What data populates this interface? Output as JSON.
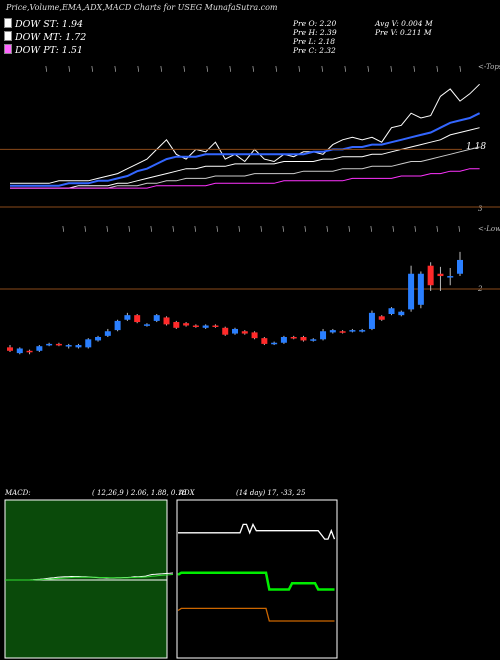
{
  "header": {
    "title": "Price,Volume,EMA,ADX,MACD Charts for USEG MunafaSutra.com"
  },
  "legend": [
    {
      "label": "DOW ST: 1.94",
      "color": "#ffffff"
    },
    {
      "label": "DOW MT: 1.72",
      "color": "#ffffff"
    },
    {
      "label": "DOW PT: 1.51",
      "color": "#ff66ff"
    }
  ],
  "stats": {
    "open": "Pre  O: 2.20",
    "high": "Pre  H: 2.39",
    "low": "Pre  L: 2.18",
    "close": "Pre  C: 2.32",
    "avg_vol": "Avg V: 0.004  M",
    "pre_vol": "Pre  V: 0.211 M"
  },
  "axes": {
    "top_right_label": "<-Tops",
    "lower_right_label": "<-Lows",
    "ema_level": "1.18",
    "volume_tick": "3",
    "price_tick": "2"
  },
  "macd": {
    "title": "MACD:",
    "params": "( 12,26,9 ) 2.06, 1.88, 0.18"
  },
  "adx": {
    "title": "ADX",
    "params": "(14  day) 17, -33, 25"
  },
  "chart_data": [
    {
      "type": "candlestick",
      "name": "price",
      "candles": [
        {
          "o": 1.56,
          "c": 1.53,
          "h": 1.58,
          "l": 1.52
        },
        {
          "o": 1.51,
          "c": 1.55,
          "h": 1.56,
          "l": 1.5
        },
        {
          "o": 1.53,
          "c": 1.52,
          "h": 1.54,
          "l": 1.5
        },
        {
          "o": 1.53,
          "c": 1.57,
          "h": 1.58,
          "l": 1.52
        },
        {
          "o": 1.58,
          "c": 1.59,
          "h": 1.6,
          "l": 1.57
        },
        {
          "o": 1.59,
          "c": 1.58,
          "h": 1.6,
          "l": 1.57
        },
        {
          "o": 1.57,
          "c": 1.58,
          "h": 1.59,
          "l": 1.55
        },
        {
          "o": 1.56,
          "c": 1.58,
          "h": 1.59,
          "l": 1.55
        },
        {
          "o": 1.56,
          "c": 1.63,
          "h": 1.64,
          "l": 1.55
        },
        {
          "o": 1.62,
          "c": 1.65,
          "h": 1.66,
          "l": 1.61
        },
        {
          "o": 1.66,
          "c": 1.7,
          "h": 1.72,
          "l": 1.65
        },
        {
          "o": 1.71,
          "c": 1.79,
          "h": 1.8,
          "l": 1.7
        },
        {
          "o": 1.8,
          "c": 1.84,
          "h": 1.86,
          "l": 1.79
        },
        {
          "o": 1.84,
          "c": 1.78,
          "h": 1.85,
          "l": 1.77
        },
        {
          "o": 1.75,
          "c": 1.76,
          "h": 1.77,
          "l": 1.74
        },
        {
          "o": 1.79,
          "c": 1.84,
          "h": 1.85,
          "l": 1.78
        },
        {
          "o": 1.82,
          "c": 1.76,
          "h": 1.83,
          "l": 1.75
        },
        {
          "o": 1.78,
          "c": 1.73,
          "h": 1.79,
          "l": 1.72
        },
        {
          "o": 1.77,
          "c": 1.75,
          "h": 1.78,
          "l": 1.74
        },
        {
          "o": 1.75,
          "c": 1.74,
          "h": 1.76,
          "l": 1.73
        },
        {
          "o": 1.73,
          "c": 1.75,
          "h": 1.76,
          "l": 1.72
        },
        {
          "o": 1.75,
          "c": 1.74,
          "h": 1.76,
          "l": 1.73
        },
        {
          "o": 1.73,
          "c": 1.67,
          "h": 1.74,
          "l": 1.66
        },
        {
          "o": 1.68,
          "c": 1.72,
          "h": 1.73,
          "l": 1.67
        },
        {
          "o": 1.7,
          "c": 1.68,
          "h": 1.71,
          "l": 1.67
        },
        {
          "o": 1.69,
          "c": 1.64,
          "h": 1.7,
          "l": 1.63
        },
        {
          "o": 1.64,
          "c": 1.59,
          "h": 1.65,
          "l": 1.58
        },
        {
          "o": 1.6,
          "c": 1.6,
          "h": 1.61,
          "l": 1.58
        },
        {
          "o": 1.6,
          "c": 1.65,
          "h": 1.66,
          "l": 1.59
        },
        {
          "o": 1.65,
          "c": 1.64,
          "h": 1.66,
          "l": 1.63
        },
        {
          "o": 1.65,
          "c": 1.62,
          "h": 1.66,
          "l": 1.61
        },
        {
          "o": 1.62,
          "c": 1.63,
          "h": 1.64,
          "l": 1.61
        },
        {
          "o": 1.63,
          "c": 1.7,
          "h": 1.72,
          "l": 1.62
        },
        {
          "o": 1.69,
          "c": 1.71,
          "h": 1.72,
          "l": 1.68
        },
        {
          "o": 1.7,
          "c": 1.69,
          "h": 1.71,
          "l": 1.68
        },
        {
          "o": 1.7,
          "c": 1.71,
          "h": 1.72,
          "l": 1.69
        },
        {
          "o": 1.7,
          "c": 1.71,
          "h": 1.72,
          "l": 1.69
        },
        {
          "o": 1.72,
          "c": 1.86,
          "h": 1.88,
          "l": 1.71
        },
        {
          "o": 1.83,
          "c": 1.8,
          "h": 1.84,
          "l": 1.79
        },
        {
          "o": 1.85,
          "c": 1.9,
          "h": 1.91,
          "l": 1.84
        },
        {
          "o": 1.84,
          "c": 1.87,
          "h": 1.88,
          "l": 1.83
        },
        {
          "o": 1.89,
          "c": 2.2,
          "h": 2.27,
          "l": 1.87
        },
        {
          "o": 1.93,
          "c": 2.2,
          "h": 2.22,
          "l": 1.9
        },
        {
          "o": 2.27,
          "c": 2.1,
          "h": 2.3,
          "l": 2.05
        },
        {
          "o": 2.2,
          "c": 2.18,
          "h": 2.26,
          "l": 2.05
        },
        {
          "o": 2.18,
          "c": 2.18,
          "h": 2.25,
          "l": 2.1
        },
        {
          "o": 2.2,
          "c": 2.32,
          "h": 2.39,
          "l": 2.18
        }
      ]
    },
    {
      "type": "line",
      "name": "price-ema-panel",
      "series": [
        {
          "values": [
            1.04,
            1.04,
            1.04,
            1.04,
            1.04,
            1.05,
            1.05,
            1.05,
            1.05,
            1.06,
            1.07,
            1.08,
            1.1,
            1.12,
            1.14,
            1.18,
            1.22,
            1.16,
            1.14,
            1.18,
            1.17,
            1.21,
            1.14,
            1.16,
            1.13,
            1.18,
            1.14,
            1.13,
            1.16,
            1.15,
            1.17,
            1.17,
            1.16,
            1.2,
            1.22,
            1.23,
            1.22,
            1.23,
            1.21,
            1.27,
            1.28,
            1.33,
            1.31,
            1.32,
            1.4,
            1.43,
            1.38,
            1.41,
            1.45
          ]
        },
        {
          "values": [
            1.03,
            1.03,
            1.03,
            1.03,
            1.03,
            1.03,
            1.04,
            1.04,
            1.04,
            1.05,
            1.05,
            1.06,
            1.07,
            1.09,
            1.1,
            1.12,
            1.14,
            1.15,
            1.15,
            1.15,
            1.16,
            1.16,
            1.16,
            1.16,
            1.16,
            1.16,
            1.16,
            1.16,
            1.16,
            1.16,
            1.16,
            1.17,
            1.17,
            1.18,
            1.18,
            1.19,
            1.19,
            1.2,
            1.2,
            1.21,
            1.22,
            1.23,
            1.24,
            1.25,
            1.27,
            1.29,
            1.3,
            1.31,
            1.33
          ]
        },
        {
          "values": [
            1.02,
            1.02,
            1.02,
            1.02,
            1.02,
            1.02,
            1.02,
            1.03,
            1.03,
            1.03,
            1.03,
            1.04,
            1.04,
            1.05,
            1.06,
            1.07,
            1.08,
            1.09,
            1.1,
            1.1,
            1.11,
            1.11,
            1.11,
            1.12,
            1.12,
            1.12,
            1.12,
            1.12,
            1.13,
            1.13,
            1.13,
            1.13,
            1.14,
            1.14,
            1.15,
            1.15,
            1.15,
            1.16,
            1.16,
            1.17,
            1.18,
            1.19,
            1.2,
            1.21,
            1.22,
            1.24,
            1.25,
            1.26,
            1.27
          ]
        },
        {
          "values": [
            1.02,
            1.02,
            1.02,
            1.02,
            1.02,
            1.02,
            1.02,
            1.02,
            1.02,
            1.02,
            1.02,
            1.03,
            1.03,
            1.03,
            1.04,
            1.04,
            1.05,
            1.05,
            1.06,
            1.06,
            1.06,
            1.07,
            1.07,
            1.07,
            1.07,
            1.08,
            1.08,
            1.08,
            1.08,
            1.08,
            1.09,
            1.09,
            1.09,
            1.09,
            1.1,
            1.1,
            1.1,
            1.11,
            1.11,
            1.11,
            1.12,
            1.13,
            1.13,
            1.14,
            1.15,
            1.16,
            1.17,
            1.18,
            1.19
          ]
        },
        {
          "values": [
            1.02,
            1.02,
            1.02,
            1.02,
            1.02,
            1.02,
            1.02,
            1.02,
            1.02,
            1.02,
            1.02,
            1.02,
            1.02,
            1.02,
            1.02,
            1.03,
            1.03,
            1.03,
            1.03,
            1.03,
            1.03,
            1.04,
            1.04,
            1.04,
            1.04,
            1.04,
            1.04,
            1.04,
            1.05,
            1.05,
            1.05,
            1.05,
            1.05,
            1.05,
            1.05,
            1.06,
            1.06,
            1.06,
            1.06,
            1.06,
            1.07,
            1.07,
            1.07,
            1.08,
            1.08,
            1.09,
            1.09,
            1.1,
            1.1
          ]
        }
      ],
      "colors": [
        "#ffffff",
        "#3366ff",
        "#ffffff",
        "#cccccc",
        "#ff33ff"
      ]
    },
    {
      "type": "line",
      "name": "macd",
      "series": [
        {
          "values": [
            0.0,
            0.0,
            0.0,
            0.0,
            0.0,
            0.0,
            0.0,
            0.0,
            0.01,
            0.02,
            0.03,
            0.04,
            0.06,
            0.08,
            0.09,
            0.11,
            0.12,
            0.13,
            0.13,
            0.14,
            0.14,
            0.14,
            0.13,
            0.13,
            0.12,
            0.11,
            0.1,
            0.09,
            0.09,
            0.08,
            0.08,
            0.08,
            0.09,
            0.09,
            0.1,
            0.1,
            0.11,
            0.13,
            0.13,
            0.14,
            0.15,
            0.19,
            0.22,
            0.23,
            0.24,
            0.25,
            0.26,
            0.27,
            0.28
          ]
        },
        {
          "values": [
            0.0,
            0.0,
            0.0,
            0.0,
            0.0,
            0.0,
            0.0,
            0.0,
            0.0,
            0.01,
            0.01,
            0.02,
            0.03,
            0.04,
            0.05,
            0.06,
            0.07,
            0.08,
            0.09,
            0.1,
            0.11,
            0.11,
            0.11,
            0.11,
            0.11,
            0.11,
            0.11,
            0.1,
            0.1,
            0.1,
            0.09,
            0.09,
            0.09,
            0.09,
            0.09,
            0.09,
            0.1,
            0.1,
            0.11,
            0.11,
            0.12,
            0.13,
            0.15,
            0.16,
            0.18,
            0.19,
            0.2,
            0.21,
            0.22
          ]
        }
      ],
      "colors": [
        "#ffffff",
        "#33dd33"
      ]
    },
    {
      "type": "line",
      "name": "adx",
      "series": [
        {
          "values": [
            32,
            32,
            32,
            32,
            32,
            32,
            32,
            32,
            32,
            32,
            32,
            32,
            32,
            32,
            32,
            32,
            32,
            32,
            32,
            32,
            36,
            36,
            32,
            36,
            33,
            33,
            33,
            33,
            33,
            33,
            33,
            33,
            33,
            33,
            33,
            33,
            33,
            33,
            33,
            33,
            33,
            33,
            33,
            33,
            31,
            29,
            29,
            33,
            29
          ],
          "color": "#ffffff"
        },
        {
          "values": [
            12,
            13,
            13,
            13,
            13,
            13,
            13,
            13,
            13,
            13,
            13,
            13,
            13,
            13,
            13,
            13,
            13,
            13,
            13,
            13,
            13,
            13,
            13,
            13,
            13,
            13,
            13,
            13,
            5,
            5,
            5,
            5,
            5,
            5,
            5,
            8,
            8,
            8,
            8,
            8,
            8,
            8,
            8,
            5,
            5,
            5,
            5,
            5,
            5
          ],
          "color": "#00ee00"
        },
        {
          "values": [
            -5,
            -4,
            -4,
            -4,
            -4,
            -4,
            -4,
            -4,
            -4,
            -4,
            -4,
            -4,
            -4,
            -4,
            -4,
            -4,
            -4,
            -4,
            -4,
            -4,
            -4,
            -4,
            -4,
            -4,
            -4,
            -4,
            -4,
            -4,
            -10,
            -10,
            -10,
            -10,
            -10,
            -10,
            -10,
            -10,
            -10,
            -10,
            -10,
            -10,
            -10,
            -10,
            -10,
            -10,
            -10,
            -10,
            -10,
            -10,
            -10
          ],
          "color": "#cc6600"
        }
      ]
    }
  ]
}
